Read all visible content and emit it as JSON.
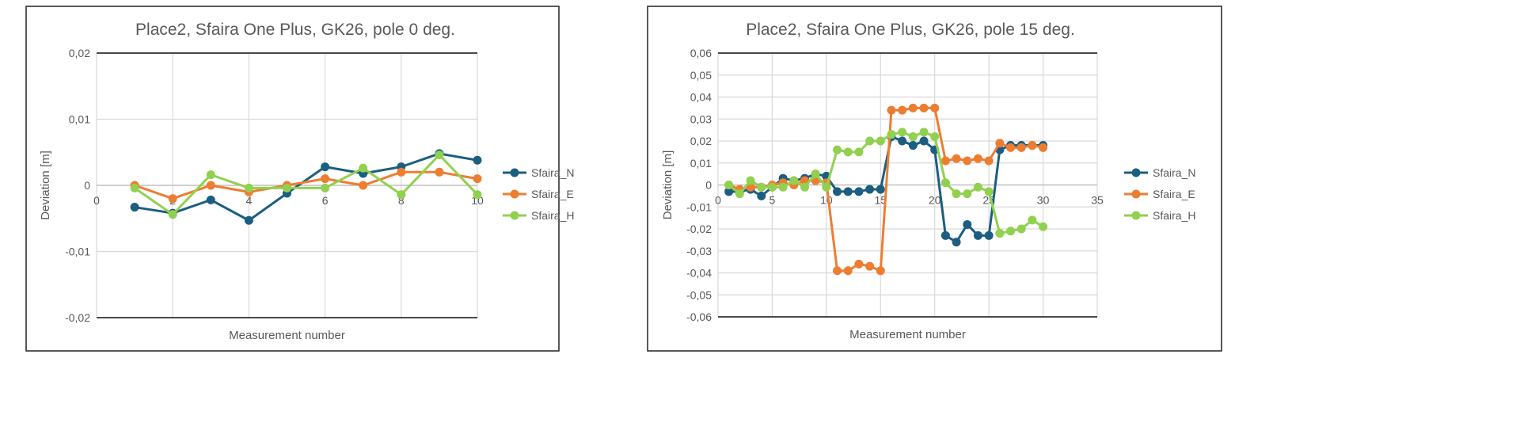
{
  "colors": {
    "Sfaira_N": "#1b5e82",
    "Sfaira_E": "#ed7d31",
    "Sfaira_H": "#92d050"
  },
  "chart_data": [
    {
      "type": "line",
      "title": "Place2, Sfaira One Plus, GK26, pole 0 deg.",
      "xlabel": "Measurement number",
      "ylabel": "Deviation [m]",
      "xlim": [
        0,
        10
      ],
      "ylim": [
        -0.02,
        0.02
      ],
      "xticks": [
        0,
        2,
        4,
        6,
        8,
        10
      ],
      "xtick_labels": [
        "0",
        "2",
        "4",
        "6",
        "8",
        "10"
      ],
      "yticks": [
        0.02,
        0.01,
        0,
        -0.01,
        -0.02
      ],
      "ytick_labels": [
        "0,02",
        "0,01",
        "0",
        "-0,01",
        "-0,02"
      ],
      "grid": true,
      "legend_position": "right",
      "x": [
        1,
        2,
        3,
        4,
        5,
        6,
        7,
        8,
        9,
        10
      ],
      "series": [
        {
          "name": "Sfaira_N",
          "values": [
            -0.0033,
            -0.0042,
            -0.0022,
            -0.0053,
            -0.0012,
            0.0028,
            0.0018,
            0.0028,
            0.0048,
            0.0038
          ]
        },
        {
          "name": "Sfaira_E",
          "values": [
            0,
            -0.002,
            0,
            -0.001,
            0,
            0.001,
            0,
            0.002,
            0.002,
            0.001
          ]
        },
        {
          "name": "Sfaira_H",
          "values": [
            -0.0004,
            -0.0044,
            0.0016,
            -0.0004,
            -0.0004,
            -0.0004,
            0.0026,
            -0.0014,
            0.0046,
            -0.0014
          ]
        }
      ]
    },
    {
      "type": "line",
      "title": "Place2, Sfaira One Plus, GK26, pole 15 deg.",
      "xlabel": "Measurement number",
      "ylabel": "Deviation [m]",
      "xlim": [
        0,
        35
      ],
      "ylim": [
        -0.06,
        0.06
      ],
      "xticks": [
        0,
        5,
        10,
        15,
        20,
        25,
        30,
        35
      ],
      "xtick_labels": [
        "0",
        "5",
        "10",
        "15",
        "20",
        "25",
        "30",
        "35"
      ],
      "yticks": [
        0.06,
        0.05,
        0.04,
        0.03,
        0.02,
        0.01,
        0,
        -0.01,
        -0.02,
        -0.03,
        -0.04,
        -0.05,
        -0.06
      ],
      "ytick_labels": [
        "0,06",
        "0,05",
        "0,04",
        "0,03",
        "0,02",
        "0,01",
        "0",
        "-0,01",
        "-0,02",
        "-0,03",
        "-0,04",
        "-0,05",
        "-0,06"
      ],
      "grid": true,
      "legend_position": "right",
      "x": [
        1,
        2,
        3,
        4,
        5,
        6,
        7,
        8,
        9,
        10,
        11,
        12,
        13,
        14,
        15,
        16,
        17,
        18,
        19,
        20,
        21,
        22,
        23,
        24,
        25,
        26,
        27,
        28,
        29,
        30
      ],
      "series": [
        {
          "name": "Sfaira_N",
          "values": [
            -0.003,
            -0.003,
            -0.002,
            -0.005,
            -0.001,
            0.003,
            0.002,
            0.003,
            0.005,
            0.004,
            -0.003,
            -0.003,
            -0.003,
            -0.002,
            -0.002,
            0.022,
            0.02,
            0.018,
            0.02,
            0.016,
            -0.023,
            -0.026,
            -0.018,
            -0.023,
            -0.023,
            0.016,
            0.018,
            0.018,
            0.018,
            0.018
          ]
        },
        {
          "name": "Sfaira_E",
          "values": [
            0,
            -0.002,
            -0.001,
            -0.001,
            0,
            0.001,
            0,
            0.002,
            0.002,
            0.001,
            -0.039,
            -0.039,
            -0.036,
            -0.037,
            -0.039,
            0.034,
            0.034,
            0.035,
            0.035,
            0.035,
            0.011,
            0.012,
            0.011,
            0.012,
            0.011,
            0.019,
            0.017,
            0.017,
            0.018,
            0.017
          ]
        },
        {
          "name": "Sfaira_H",
          "values": [
            0,
            -0.004,
            0.002,
            -0.001,
            -0.001,
            -0.001,
            0.002,
            -0.001,
            0.005,
            -0.001,
            0.016,
            0.015,
            0.015,
            0.02,
            0.02,
            0.023,
            0.024,
            0.022,
            0.024,
            0.022,
            0.001,
            -0.004,
            -0.004,
            -0.001,
            -0.003,
            -0.022,
            -0.021,
            -0.02,
            -0.016,
            -0.019
          ]
        }
      ]
    }
  ]
}
